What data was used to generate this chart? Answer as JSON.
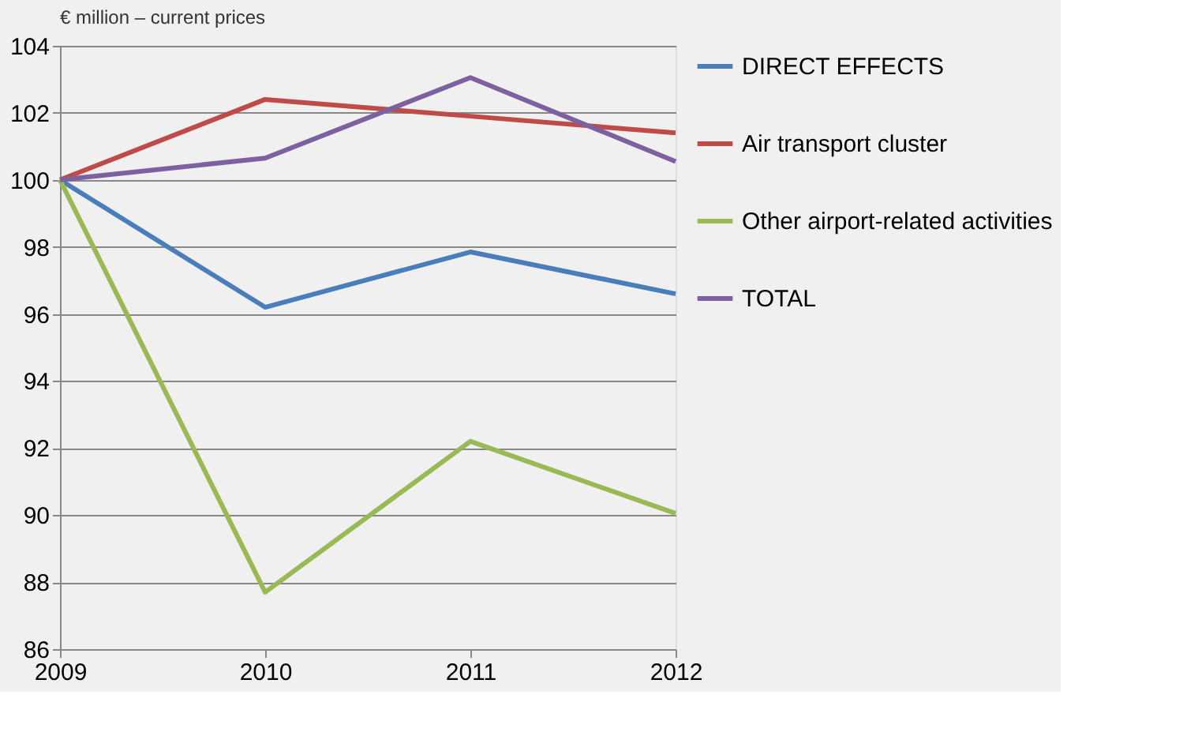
{
  "chart_data": {
    "type": "line",
    "title": "€ million – current prices",
    "x": [
      2009,
      2010,
      2011,
      2012
    ],
    "xlim": [
      2009,
      2012
    ],
    "xticks": [
      2009,
      2010,
      2011,
      2012
    ],
    "ylim": [
      86,
      104
    ],
    "yticks": [
      86,
      88,
      90,
      92,
      94,
      96,
      98,
      100,
      102,
      104
    ],
    "grid": "y",
    "legend": "right",
    "marker": "none",
    "line_style": "solid",
    "series": [
      {
        "name": "DIRECT EFFECTS",
        "color": "#4a7ebb",
        "values": [
          100,
          96.2,
          97.85,
          96.6
        ]
      },
      {
        "name": "Air transport cluster",
        "color": "#be4b48",
        "values": [
          100,
          102.4,
          101.9,
          101.4
        ]
      },
      {
        "name": "Other airport-related activities",
        "color": "#98b954",
        "values": [
          100,
          87.7,
          92.2,
          90.05
        ]
      },
      {
        "name": "TOTAL",
        "color": "#7d60a0",
        "values": [
          100,
          100.65,
          103.05,
          100.55
        ]
      }
    ]
  }
}
